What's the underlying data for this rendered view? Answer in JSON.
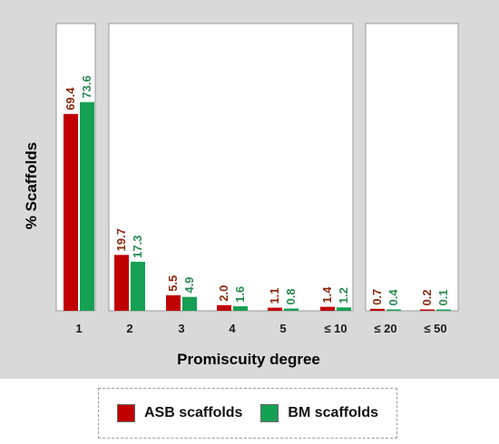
{
  "chart_data": {
    "type": "bar",
    "xlabel": "Promiscuity degree",
    "ylabel": "% Scaffolds",
    "categories": [
      "1",
      "2",
      "3",
      "4",
      "5",
      "≤ 10",
      "≤ 20",
      "≤ 50"
    ],
    "panels": [
      [
        "1"
      ],
      [
        "2",
        "3",
        "4",
        "5",
        "≤ 10"
      ],
      [
        "≤ 20",
        "≤ 50"
      ]
    ],
    "ylim": [
      0,
      100
    ],
    "grid": false,
    "legend_position": "bottom",
    "series": [
      {
        "name": "ASB scaffolds",
        "color": "#c00000",
        "values": [
          69.4,
          19.7,
          5.5,
          2.0,
          1.1,
          1.4,
          0.7,
          0.2
        ],
        "labels": [
          "69.4",
          "19.7",
          "5.5",
          "2.0",
          "1.1",
          "1.4",
          "0.7",
          "0.2"
        ]
      },
      {
        "name": "BM scaffolds",
        "color": "#16a054",
        "values": [
          73.6,
          17.3,
          4.9,
          1.6,
          0.8,
          1.2,
          0.4,
          0.1
        ],
        "labels": [
          "73.6",
          "17.3",
          "4.9",
          "1.6",
          "0.8",
          "1.2",
          "0.4",
          "0.1"
        ]
      }
    ],
    "label_colors": [
      "#8b2a0e",
      "#2a8a52"
    ],
    "background_color": "#d9d9d9"
  }
}
